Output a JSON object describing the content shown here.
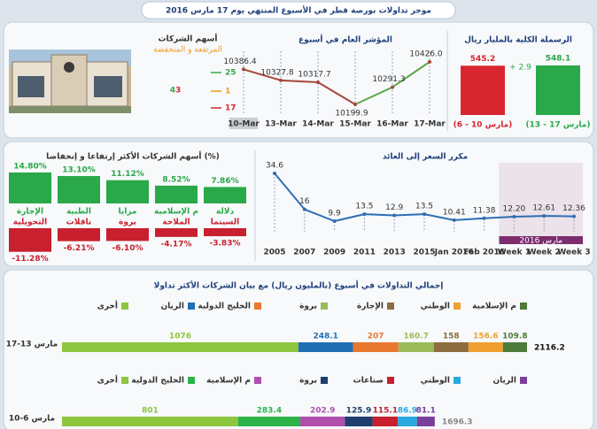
{
  "header": {
    "title": "موجز تداولات بورصة قطر في الأسبوع المنتهي يوم 17 مارس 2016"
  },
  "chart_data": [
    {
      "type": "bar",
      "title": "الرسملة الكلية بالمليار ريال",
      "categories": [
        "(6 - 10 مارس)",
        "(13 - 17 مارس)"
      ],
      "values": [
        545.2,
        548.1
      ],
      "colors": [
        "#d7262f",
        "#2aa84a"
      ],
      "annotation": "+ 2.9"
    },
    {
      "type": "line",
      "title": "المؤشر العام في أسبوع",
      "categories": [
        "10-Mar",
        "13-Mar",
        "14-Mar",
        "15-Mar",
        "16-Mar",
        "17-Mar"
      ],
      "values": [
        10386.4,
        10327.8,
        10317.7,
        10199.9,
        10291.3,
        10426.0
      ],
      "value_labels": [
        "10386.4",
        "10327.8",
        "10317.7",
        "10199.9",
        "10291.3",
        "10426.0"
      ],
      "color_up": "#5aa846",
      "color_down": "#a8463c"
    },
    {
      "type": "stat",
      "title": "أسهم الشركات",
      "subtitle": "المرتفعة و المنخفضة",
      "total": 43,
      "up": 25,
      "unchanged": 1,
      "down": 17,
      "colors": {
        "up": "#3aa846",
        "unchanged": "#f29a1f",
        "down": "#d7262f"
      }
    },
    {
      "type": "movers",
      "title": "أسهم الشركات الأكثر إرتفاعا و إنخفاضا (%)",
      "gainers": {
        "categories": [
          "الإجارة",
          "الطبية",
          "مزايا",
          "م الإسلامية",
          "دلالة"
        ],
        "values": [
          14.8,
          13.1,
          11.12,
          8.52,
          7.86
        ],
        "value_labels": [
          "14.80%",
          "13.10%",
          "11.12%",
          "8.52%",
          "7.86%"
        ],
        "color": "#2aa84a"
      },
      "losers": {
        "categories": [
          "التحويلية",
          "ناقلات",
          "بروة",
          "الملاحة",
          "السينما"
        ],
        "values": [
          -11.28,
          -6.21,
          -6.1,
          -4.17,
          -3.83
        ],
        "value_labels": [
          "-11.28%",
          "-6.21%",
          "-6.10%",
          "-4.17%",
          "-3.83%"
        ],
        "color": "#c8202e"
      }
    },
    {
      "type": "line",
      "title": "مكرر السعر إلى العائد",
      "categories": [
        "2005",
        "2007",
        "2009",
        "2011",
        "2013",
        "2015",
        "Jan 2016",
        "Feb 2016",
        "Week 1",
        "Week 2",
        "Week 3"
      ],
      "values": [
        34.6,
        16,
        9.9,
        13.5,
        12.9,
        13.5,
        10.41,
        11.38,
        12.2,
        12.61,
        12.36
      ],
      "value_labels": [
        "34.6",
        "16",
        "9.9",
        "13.5",
        "12.9",
        "13.5",
        "10.41",
        "11.38",
        "12.20",
        "12.61",
        "12.36"
      ],
      "color": "#2f6db3",
      "annotation": "مارس 2016"
    },
    {
      "type": "stacked_hbar",
      "title": "إجمالي التداولات في أسبوع (بالمليون ريال) مع بيان الشركات الأكثر تداولا",
      "rows": [
        {
          "label": "17-13 مارس",
          "total": 2116.2,
          "series": [
            {
              "name": "أخرى",
              "color": "#8dc63f",
              "value": 1076
            },
            {
              "name": "الريان",
              "color": "#1f6fb5",
              "value": 248.1
            },
            {
              "name": "الخليج الدولية",
              "color": "#e8772e",
              "value": 207
            },
            {
              "name": "بروة",
              "color": "#9bbb59",
              "value": 160.7
            },
            {
              "name": "الإجارة",
              "color": "#8c6d3f",
              "value": 158
            },
            {
              "name": "الوطني",
              "color": "#f0a030",
              "value": 156.6
            },
            {
              "name": "م الإسلامية",
              "color": "#4e7a3a",
              "value": 109.8
            }
          ]
        },
        {
          "label": "10-6 مارس",
          "total": 1696.3,
          "series": [
            {
              "name": "أخرى",
              "color": "#8dc63f",
              "value": 801
            },
            {
              "name": "الخليج الدولية",
              "color": "#2db34a",
              "value": 283.4
            },
            {
              "name": "م الإسلامية",
              "color": "#b04fae",
              "value": 202.9
            },
            {
              "name": "بروة",
              "color": "#1f3f6f",
              "value": 125.9
            },
            {
              "name": "صناعات",
              "color": "#c8202e",
              "value": 115.1
            },
            {
              "name": "الوطني",
              "color": "#2aa9e0",
              "value": 86.9
            },
            {
              "name": "الريان",
              "color": "#7a3f9a",
              "value": 81.1
            }
          ]
        }
      ]
    }
  ]
}
